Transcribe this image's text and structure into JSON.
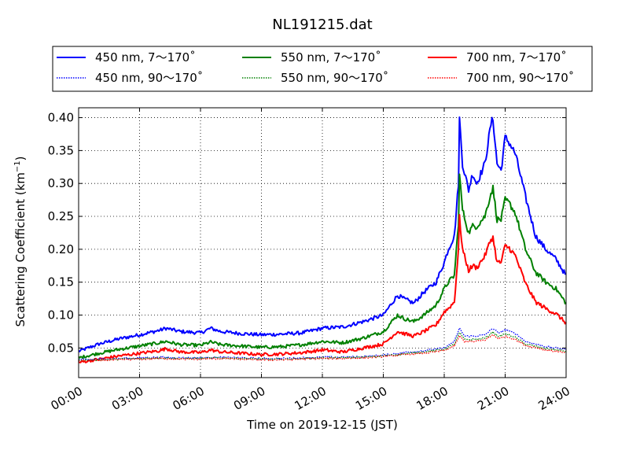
{
  "chart_data": {
    "type": "line",
    "title": "NL191215.dat",
    "xlabel": "Time on 2019-12-15 (JST)",
    "ylabel": "Scattering Coefficient (km",
    "ylabel_sup": "−1",
    "ylabel_close": ")",
    "xlim": [
      0,
      24
    ],
    "ylim": [
      0.005,
      0.415
    ],
    "xticks": [
      {
        "value": 0,
        "label": "00:00"
      },
      {
        "value": 3,
        "label": "03:00"
      },
      {
        "value": 6,
        "label": "06:00"
      },
      {
        "value": 9,
        "label": "09:00"
      },
      {
        "value": 12,
        "label": "12:00"
      },
      {
        "value": 15,
        "label": "15:00"
      },
      {
        "value": 18,
        "label": "18:00"
      },
      {
        "value": 21,
        "label": "21:00"
      },
      {
        "value": 24,
        "label": "24:00"
      }
    ],
    "yticks": [
      {
        "value": 0.05,
        "label": "0.05"
      },
      {
        "value": 0.1,
        "label": "0.10"
      },
      {
        "value": 0.15,
        "label": "0.15"
      },
      {
        "value": 0.2,
        "label": "0.20"
      },
      {
        "value": 0.25,
        "label": "0.25"
      },
      {
        "value": 0.3,
        "label": "0.30"
      },
      {
        "value": 0.35,
        "label": "0.35"
      },
      {
        "value": 0.4,
        "label": "0.40"
      }
    ],
    "grid": true,
    "legend_placement": "top, above plot, 3 columns",
    "series": [
      {
        "name": "450 nm, 7～170˚",
        "color": "#0000ff",
        "style": "solid",
        "points": [
          [
            0,
            0.045
          ],
          [
            1,
            0.056
          ],
          [
            2,
            0.064
          ],
          [
            3,
            0.07
          ],
          [
            4,
            0.077
          ],
          [
            4.3,
            0.08
          ],
          [
            5,
            0.075
          ],
          [
            6,
            0.073
          ],
          [
            6.5,
            0.08
          ],
          [
            7,
            0.075
          ],
          [
            8,
            0.072
          ],
          [
            9,
            0.07
          ],
          [
            10,
            0.071
          ],
          [
            11,
            0.073
          ],
          [
            12,
            0.08
          ],
          [
            13,
            0.082
          ],
          [
            14,
            0.09
          ],
          [
            15,
            0.1
          ],
          [
            15.7,
            0.13
          ],
          [
            16,
            0.125
          ],
          [
            16.5,
            0.118
          ],
          [
            17,
            0.135
          ],
          [
            17.6,
            0.15
          ],
          [
            18,
            0.18
          ],
          [
            18.2,
            0.2
          ],
          [
            18.5,
            0.22
          ],
          [
            18.7,
            0.3
          ],
          [
            18.75,
            0.398
          ],
          [
            18.9,
            0.33
          ],
          [
            19.2,
            0.29
          ],
          [
            19.4,
            0.315
          ],
          [
            19.6,
            0.3
          ],
          [
            20,
            0.33
          ],
          [
            20.3,
            0.39
          ],
          [
            20.4,
            0.398
          ],
          [
            20.6,
            0.33
          ],
          [
            20.8,
            0.32
          ],
          [
            21,
            0.37
          ],
          [
            21.2,
            0.362
          ],
          [
            21.5,
            0.345
          ],
          [
            22,
            0.28
          ],
          [
            22.5,
            0.22
          ],
          [
            23,
            0.2
          ],
          [
            23.5,
            0.185
          ],
          [
            24,
            0.16
          ]
        ]
      },
      {
        "name": "550 nm, 7～170˚",
        "color": "#008000",
        "style": "solid",
        "points": [
          [
            0,
            0.035
          ],
          [
            1,
            0.042
          ],
          [
            2,
            0.048
          ],
          [
            3,
            0.053
          ],
          [
            4,
            0.058
          ],
          [
            4.3,
            0.06
          ],
          [
            5,
            0.055
          ],
          [
            6,
            0.054
          ],
          [
            6.5,
            0.059
          ],
          [
            7,
            0.055
          ],
          [
            8,
            0.053
          ],
          [
            9,
            0.051
          ],
          [
            10,
            0.052
          ],
          [
            11,
            0.055
          ],
          [
            12,
            0.06
          ],
          [
            13,
            0.058
          ],
          [
            14,
            0.065
          ],
          [
            15,
            0.075
          ],
          [
            15.7,
            0.1
          ],
          [
            16,
            0.095
          ],
          [
            16.5,
            0.09
          ],
          [
            17,
            0.1
          ],
          [
            17.6,
            0.115
          ],
          [
            18,
            0.14
          ],
          [
            18.2,
            0.15
          ],
          [
            18.5,
            0.16
          ],
          [
            18.7,
            0.24
          ],
          [
            18.75,
            0.313
          ],
          [
            18.9,
            0.26
          ],
          [
            19.2,
            0.225
          ],
          [
            19.4,
            0.235
          ],
          [
            19.6,
            0.235
          ],
          [
            20,
            0.25
          ],
          [
            20.3,
            0.285
          ],
          [
            20.4,
            0.293
          ],
          [
            20.6,
            0.245
          ],
          [
            20.8,
            0.245
          ],
          [
            21,
            0.275
          ],
          [
            21.2,
            0.27
          ],
          [
            21.5,
            0.255
          ],
          [
            22,
            0.2
          ],
          [
            22.5,
            0.165
          ],
          [
            23,
            0.15
          ],
          [
            23.5,
            0.14
          ],
          [
            24,
            0.118
          ]
        ]
      },
      {
        "name": "700 nm, 7～170˚",
        "color": "#ff0000",
        "style": "solid",
        "points": [
          [
            0,
            0.028
          ],
          [
            1,
            0.033
          ],
          [
            2,
            0.038
          ],
          [
            3,
            0.042
          ],
          [
            4,
            0.046
          ],
          [
            4.3,
            0.049
          ],
          [
            5,
            0.044
          ],
          [
            6,
            0.043
          ],
          [
            6.5,
            0.047
          ],
          [
            7,
            0.044
          ],
          [
            8,
            0.042
          ],
          [
            9,
            0.04
          ],
          [
            10,
            0.041
          ],
          [
            11,
            0.043
          ],
          [
            12,
            0.047
          ],
          [
            13,
            0.044
          ],
          [
            14,
            0.05
          ],
          [
            15,
            0.056
          ],
          [
            15.7,
            0.075
          ],
          [
            16,
            0.072
          ],
          [
            16.5,
            0.068
          ],
          [
            17,
            0.075
          ],
          [
            17.6,
            0.085
          ],
          [
            18,
            0.105
          ],
          [
            18.2,
            0.11
          ],
          [
            18.5,
            0.12
          ],
          [
            18.7,
            0.2
          ],
          [
            18.75,
            0.248
          ],
          [
            18.9,
            0.2
          ],
          [
            19.2,
            0.168
          ],
          [
            19.4,
            0.175
          ],
          [
            19.6,
            0.172
          ],
          [
            20,
            0.19
          ],
          [
            20.3,
            0.215
          ],
          [
            20.4,
            0.218
          ],
          [
            20.6,
            0.18
          ],
          [
            20.8,
            0.18
          ],
          [
            21,
            0.205
          ],
          [
            21.2,
            0.202
          ],
          [
            21.5,
            0.19
          ],
          [
            22,
            0.148
          ],
          [
            22.5,
            0.12
          ],
          [
            23,
            0.11
          ],
          [
            23.5,
            0.102
          ],
          [
            24,
            0.088
          ]
        ]
      },
      {
        "name": "450 nm, 90～170˚",
        "color": "#0000ff",
        "style": "dotted",
        "points": [
          [
            0,
            0.032
          ],
          [
            1,
            0.033
          ],
          [
            2,
            0.034
          ],
          [
            3,
            0.035
          ],
          [
            4,
            0.036
          ],
          [
            5,
            0.035
          ],
          [
            6,
            0.035
          ],
          [
            7,
            0.036
          ],
          [
            8,
            0.035
          ],
          [
            9,
            0.034
          ],
          [
            10,
            0.034
          ],
          [
            11,
            0.035
          ],
          [
            12,
            0.036
          ],
          [
            13,
            0.036
          ],
          [
            14,
            0.037
          ],
          [
            15,
            0.039
          ],
          [
            16,
            0.043
          ],
          [
            17,
            0.046
          ],
          [
            18,
            0.05
          ],
          [
            18.5,
            0.06
          ],
          [
            18.75,
            0.08
          ],
          [
            19,
            0.068
          ],
          [
            19.5,
            0.068
          ],
          [
            20,
            0.07
          ],
          [
            20.4,
            0.08
          ],
          [
            20.7,
            0.072
          ],
          [
            21,
            0.078
          ],
          [
            21.5,
            0.072
          ],
          [
            22,
            0.06
          ],
          [
            23,
            0.052
          ],
          [
            24,
            0.048
          ]
        ]
      },
      {
        "name": "550 nm, 90～170˚",
        "color": "#008000",
        "style": "dotted",
        "points": [
          [
            0,
            0.031
          ],
          [
            1,
            0.032
          ],
          [
            2,
            0.033
          ],
          [
            3,
            0.034
          ],
          [
            4,
            0.035
          ],
          [
            5,
            0.034
          ],
          [
            6,
            0.034
          ],
          [
            7,
            0.035
          ],
          [
            8,
            0.034
          ],
          [
            9,
            0.033
          ],
          [
            10,
            0.033
          ],
          [
            11,
            0.034
          ],
          [
            12,
            0.035
          ],
          [
            13,
            0.035
          ],
          [
            14,
            0.036
          ],
          [
            15,
            0.038
          ],
          [
            16,
            0.041
          ],
          [
            17,
            0.044
          ],
          [
            18,
            0.048
          ],
          [
            18.5,
            0.056
          ],
          [
            18.75,
            0.073
          ],
          [
            19,
            0.063
          ],
          [
            19.5,
            0.063
          ],
          [
            20,
            0.065
          ],
          [
            20.4,
            0.074
          ],
          [
            20.7,
            0.067
          ],
          [
            21,
            0.072
          ],
          [
            21.5,
            0.066
          ],
          [
            22,
            0.056
          ],
          [
            23,
            0.049
          ],
          [
            24,
            0.045
          ]
        ]
      },
      {
        "name": "700 nm, 90～170˚",
        "color": "#ff0000",
        "style": "dotted",
        "points": [
          [
            0,
            0.03
          ],
          [
            1,
            0.031
          ],
          [
            2,
            0.032
          ],
          [
            3,
            0.033
          ],
          [
            4,
            0.034
          ],
          [
            5,
            0.033
          ],
          [
            6,
            0.033
          ],
          [
            7,
            0.034
          ],
          [
            8,
            0.033
          ],
          [
            9,
            0.032
          ],
          [
            10,
            0.032
          ],
          [
            11,
            0.033
          ],
          [
            12,
            0.034
          ],
          [
            13,
            0.034
          ],
          [
            14,
            0.035
          ],
          [
            15,
            0.037
          ],
          [
            16,
            0.04
          ],
          [
            17,
            0.042
          ],
          [
            18,
            0.046
          ],
          [
            18.5,
            0.053
          ],
          [
            18.75,
            0.068
          ],
          [
            19,
            0.06
          ],
          [
            19.5,
            0.06
          ],
          [
            20,
            0.062
          ],
          [
            20.4,
            0.07
          ],
          [
            20.7,
            0.064
          ],
          [
            21,
            0.068
          ],
          [
            21.5,
            0.063
          ],
          [
            22,
            0.054
          ],
          [
            23,
            0.047
          ],
          [
            24,
            0.043
          ]
        ]
      }
    ]
  }
}
